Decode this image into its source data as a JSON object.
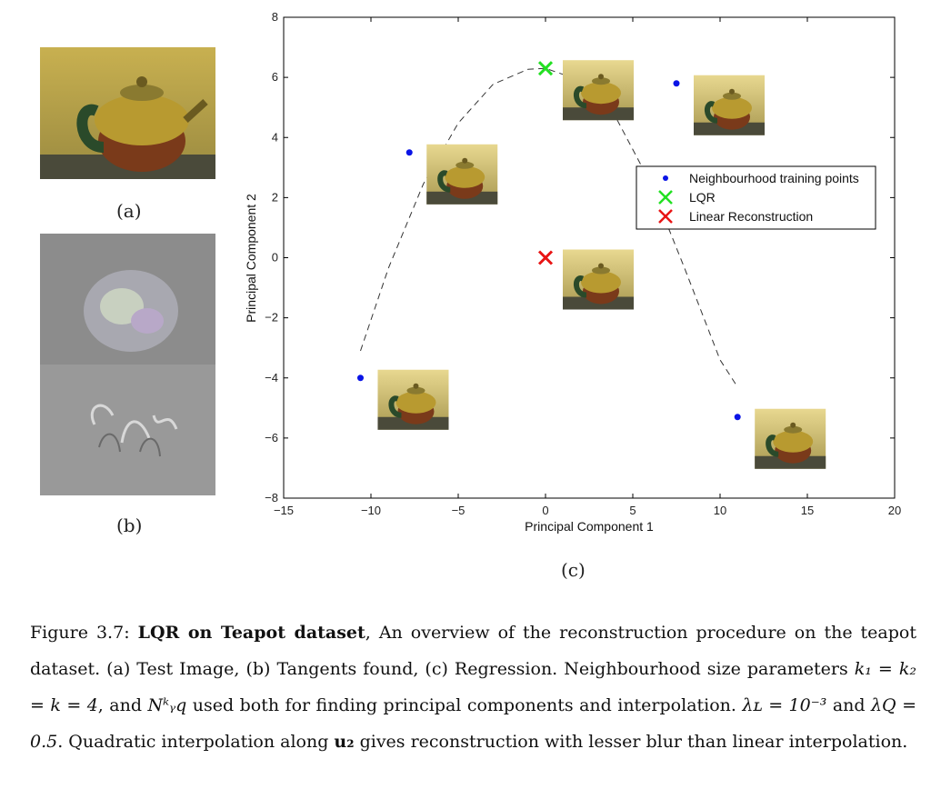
{
  "figures": {
    "a": {
      "label": "(a)"
    },
    "b": {
      "label": "(b)"
    },
    "c": {
      "label": "(c)"
    }
  },
  "chart_data": {
    "type": "scatter",
    "title": "",
    "xlabel": "Principal Component 1",
    "ylabel": "Principal Component 2",
    "xlim": [
      -15,
      20
    ],
    "ylim": [
      -8,
      8
    ],
    "xticks": [
      -15,
      -10,
      -5,
      0,
      5,
      10,
      15,
      20
    ],
    "yticks": [
      -8,
      -6,
      -4,
      -2,
      0,
      2,
      4,
      6,
      8
    ],
    "xtick_labels": [
      "−15",
      "−10",
      "−5",
      "0",
      "5",
      "10",
      "15",
      "20"
    ],
    "ytick_labels": [
      "−8",
      "−6",
      "−4",
      "−2",
      "0",
      "2",
      "4",
      "6",
      "8"
    ],
    "legend_position": "right",
    "series": [
      {
        "name": "Neighbourhood training points",
        "marker": "dot",
        "color": "#0a14e6",
        "x": [
          -10.6,
          -7.8,
          7.5,
          11.0
        ],
        "y": [
          -4.0,
          3.5,
          5.8,
          -5.3
        ]
      },
      {
        "name": "LQR",
        "marker": "x",
        "color": "#22e022",
        "x": [
          0.0
        ],
        "y": [
          6.3
        ]
      },
      {
        "name": "Linear Reconstruction",
        "marker": "x",
        "color": "#e81414",
        "x": [
          0.0
        ],
        "y": [
          0.0
        ]
      }
    ],
    "curve": {
      "style": "dashed",
      "x": [
        -10.6,
        -9,
        -7,
        -5,
        -3,
        -1,
        0,
        2,
        4,
        6,
        8,
        10,
        11
      ],
      "y": [
        -3.1,
        -0.35,
        2.45,
        4.48,
        5.77,
        6.27,
        6.3,
        5.9,
        4.7,
        2.5,
        -0.4,
        -3.4,
        -4.3
      ]
    },
    "thumbnails": [
      {
        "x": -7.8,
        "y": 3.5
      },
      {
        "x": 0.0,
        "y": 6.3
      },
      {
        "x": 7.5,
        "y": 5.8
      },
      {
        "x": 0.0,
        "y": 0.0
      },
      {
        "x": -10.6,
        "y": -4.0
      },
      {
        "x": 11.0,
        "y": -5.3
      }
    ]
  },
  "caption": {
    "prefix": "Figure 3.7: ",
    "title": "LQR on Teapot dataset",
    "body1": ", An overview of the reconstruction procedure on the teapot dataset. (a) Test Image, (b) Tangents found, (c) Regression. Neighbourhood size parameters ",
    "params": "k₁ = k₂ = k = 4",
    "body2": ", and ",
    "nyq": "Nᵏᵧq",
    "body3": " used both for finding principal components and interpolation. ",
    "lamL": "λʟ = 10⁻³",
    "body4": " and ",
    "lamQ": "λQ = 0.5",
    "body5": ". Quadratic interpolation along ",
    "u2": "u₂",
    "body6": " gives reconstruction with lesser blur than linear interpolation."
  }
}
